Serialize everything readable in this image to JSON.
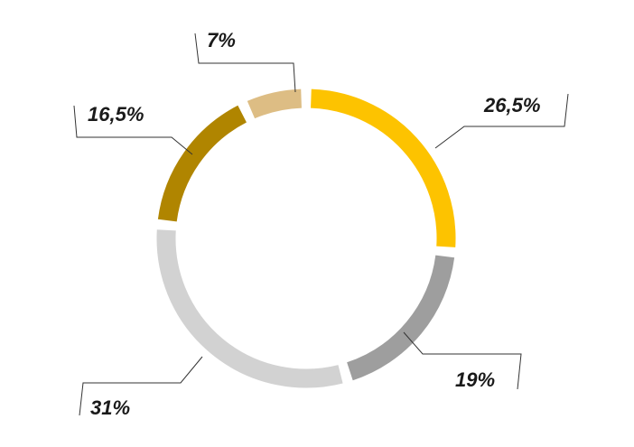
{
  "chart_data": {
    "type": "pie",
    "style": "donut",
    "start_angle_deg": 0,
    "direction": "clockwise",
    "title": "",
    "slices": [
      {
        "label": "26,5%",
        "value": 26.5,
        "color": "#FDC300"
      },
      {
        "label": "19%",
        "value": 19,
        "color": "#9E9E9E"
      },
      {
        "label": "31%",
        "value": 31,
        "color": "#D2D2D2"
      },
      {
        "label": "16,5%",
        "value": 16.5,
        "color": "#B08500"
      },
      {
        "label": "7%",
        "value": 7,
        "color": "#DDBD84"
      }
    ]
  }
}
